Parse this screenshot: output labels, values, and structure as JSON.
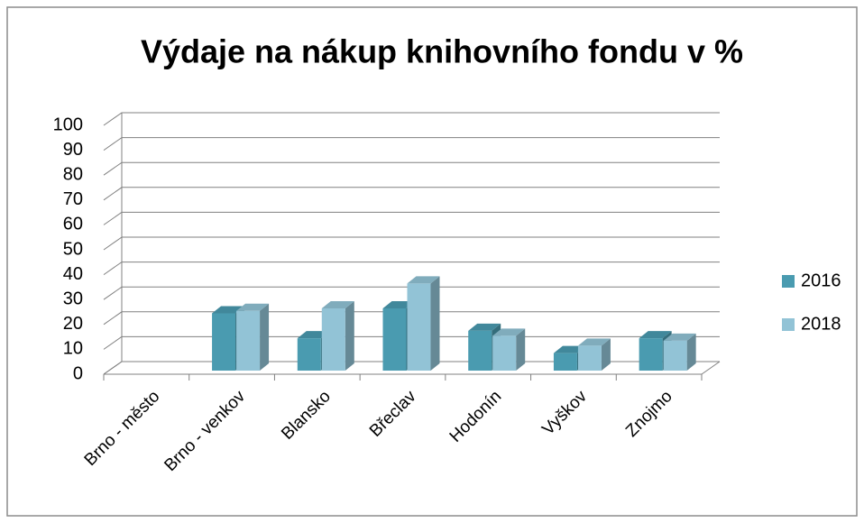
{
  "chart_data": {
    "type": "bar3d",
    "title": "Výdaje na nákup knihovního fondu v %",
    "categories": [
      "Brno - město",
      "Brno - venkov",
      "Blansko",
      "Břeclav",
      "Hodonín",
      "Vyškov",
      "Znojmo"
    ],
    "series": [
      {
        "name": "2016",
        "color": "#4a9bb0",
        "values": [
          0,
          23,
          13,
          25,
          16,
          7,
          13
        ]
      },
      {
        "name": "2018",
        "color": "#92c3d6",
        "values": [
          0,
          24,
          25,
          35,
          14,
          10,
          12
        ]
      }
    ],
    "ylim": [
      0,
      100
    ],
    "yticks": [
      0,
      10,
      20,
      30,
      40,
      50,
      60,
      70,
      80,
      90,
      100
    ],
    "grid": true,
    "legend": "right"
  }
}
